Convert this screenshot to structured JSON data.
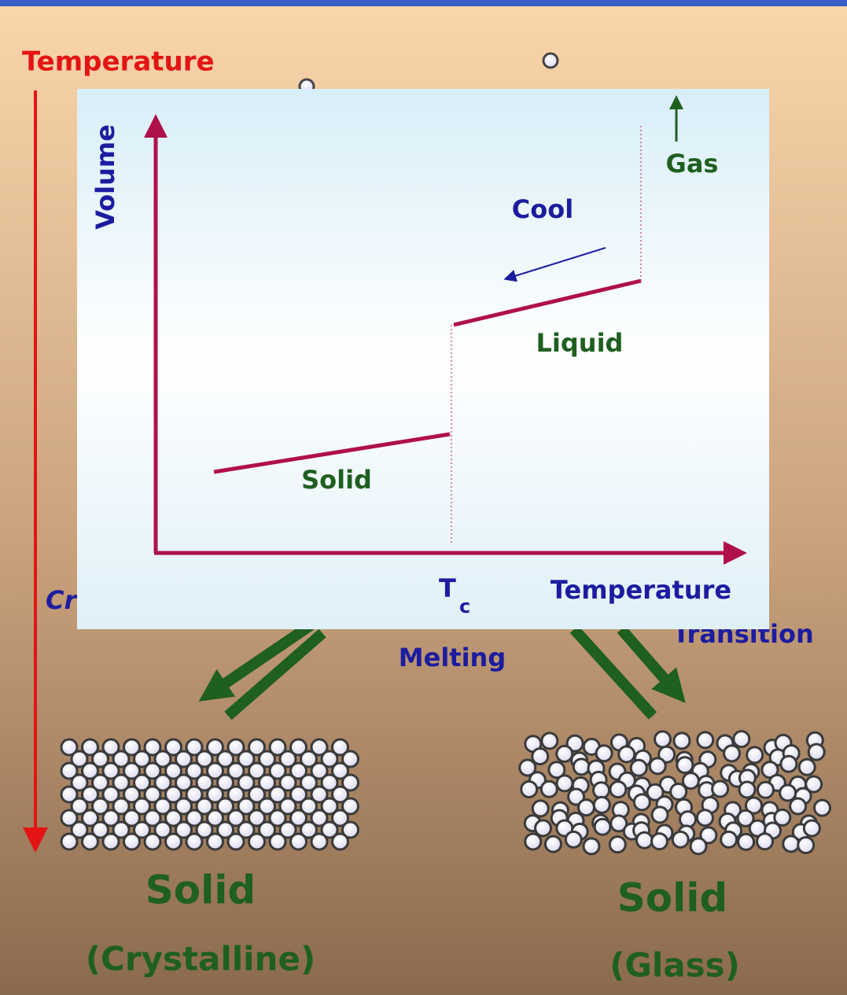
{
  "header": {
    "temperature": "Temperature"
  },
  "labels": {
    "crystallization_partial": "Cr",
    "glass_transition_partial": "Transition",
    "melting": "Melting"
  },
  "inset": {
    "y_axis": "Volume",
    "x_axis": "Temperature",
    "gas": "Gas",
    "cool": "Cool",
    "liquid": "Liquid",
    "solid": "Solid",
    "tc_main": "T",
    "tc_sub": "c"
  },
  "structures": [
    {
      "title": "Solid",
      "subtitle": "(Crystalline)"
    },
    {
      "title": "Solid",
      "subtitle": "(Glass)"
    }
  ]
}
